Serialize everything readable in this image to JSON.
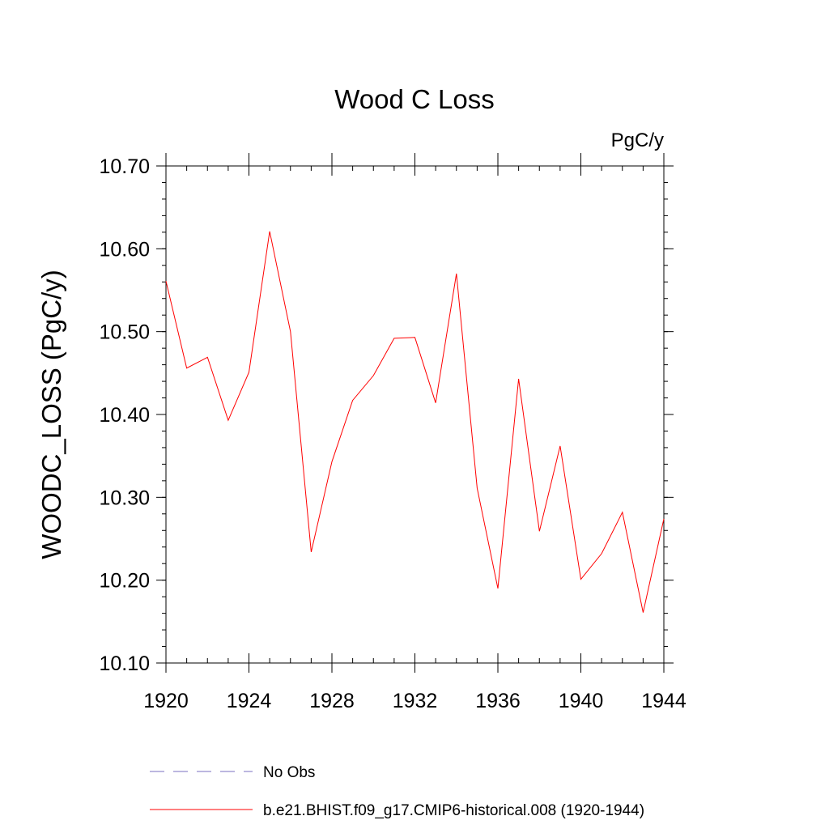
{
  "chart_data": {
    "type": "line",
    "title": "Wood C Loss",
    "units_label": "PgC/y",
    "ylabel": "WOODC_LOSS  (PgC/y)",
    "xlabel": "",
    "xlim": [
      1920,
      1944
    ],
    "ylim": [
      10.1,
      10.7
    ],
    "x_ticks": [
      1920,
      1924,
      1928,
      1932,
      1936,
      1940,
      1944
    ],
    "x_tick_labels": [
      "1920",
      "1924",
      "1928",
      "1932",
      "1936",
      "1940",
      "1944"
    ],
    "y_ticks": [
      10.1,
      10.2,
      10.3,
      10.4,
      10.5,
      10.6,
      10.7
    ],
    "y_tick_labels": [
      "10.10",
      "10.20",
      "10.30",
      "10.40",
      "10.50",
      "10.60",
      "10.70"
    ],
    "grid": false,
    "legend_position": "bottom",
    "series": [
      {
        "name": "b.e21.BHIST.f09_g17.CMIP6-historical.008 (1920-1944)",
        "color": "#ff0000",
        "style": "solid",
        "x": [
          1920,
          1921,
          1922,
          1923,
          1924,
          1925,
          1926,
          1927,
          1928,
          1929,
          1930,
          1931,
          1932,
          1933,
          1934,
          1935,
          1936,
          1937,
          1938,
          1939,
          1940,
          1941,
          1942,
          1943,
          1944
        ],
        "y": [
          10.561,
          10.456,
          10.469,
          10.393,
          10.451,
          10.621,
          10.5,
          10.234,
          10.343,
          10.417,
          10.447,
          10.492,
          10.493,
          10.414,
          10.57,
          10.311,
          10.19,
          10.443,
          10.259,
          10.362,
          10.201,
          10.232,
          10.282,
          10.161,
          10.274
        ]
      }
    ],
    "legend": [
      {
        "label": "No Obs",
        "color": "#7a6fc0",
        "style": "dashed"
      },
      {
        "label": "b.e21.BHIST.f09_g17.CMIP6-historical.008 (1920-1944)",
        "color": "#ff0000",
        "style": "solid"
      }
    ]
  }
}
